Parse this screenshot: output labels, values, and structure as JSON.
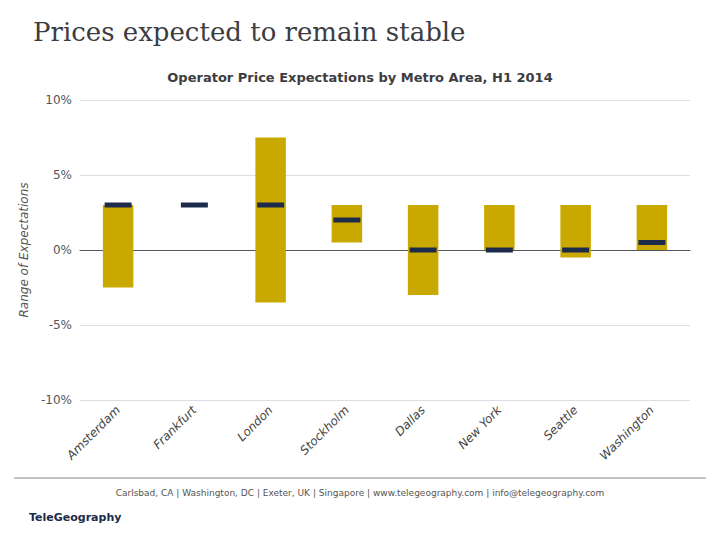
{
  "chart_data": {
    "type": "bar",
    "title": "Prices expected to remain stable",
    "subtitle": "Operator Price Expectations by Metro Area, H1 2014",
    "ylabel": "Range of Expectations",
    "annotations": [
      "Carlsbad, CA | Washington, DC | Exeter, UK | Singapore | www.telegeography.com | info@telegeography.com",
      "TeleGeography"
    ],
    "categories": [
      "Amsterdam",
      "Frankfurt",
      "London",
      "Stockholm",
      "Dallas",
      "New York",
      "Seattle",
      "Washington"
    ],
    "series": [
      {
        "type": "range",
        "color": "#C9A800",
        "low": [
          -2.5,
          null,
          -3.5,
          0.5,
          -3.0,
          0.0,
          -0.5,
          0.0
        ],
        "high": [
          3.0,
          null,
          7.5,
          3.0,
          3.0,
          3.0,
          3.0,
          3.0
        ]
      },
      {
        "type": "marker",
        "color": "#1C2B4B",
        "values": [
          3.0,
          3.0,
          3.0,
          2.0,
          0.0,
          0.0,
          0.0,
          0.5
        ]
      }
    ],
    "ylim": [
      -10,
      10
    ],
    "yticks": [
      {
        "value": -10,
        "label": "-10%"
      },
      {
        "value": -5,
        "label": "-5%"
      },
      {
        "value": 0,
        "label": "0%"
      },
      {
        "value": 5,
        "label": "5%"
      },
      {
        "value": 10,
        "label": "10%"
      }
    ],
    "grid": true
  }
}
